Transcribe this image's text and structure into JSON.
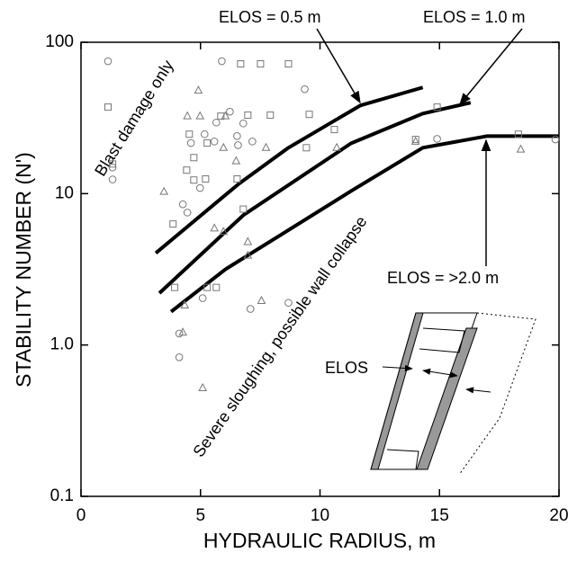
{
  "chart_data": {
    "type": "scatter",
    "x_label": "HYDRAULIC RADIUS, m",
    "y_label": "STABILITY NUMBER (N')",
    "xlim": [
      0,
      20
    ],
    "ylim": [
      0.1,
      100
    ],
    "log_y": true,
    "xticks": [
      0,
      5,
      10,
      15,
      20
    ],
    "yticks": [
      0.1,
      {
        "value": 1,
        "label": "1.0"
      },
      10,
      100
    ],
    "scatter": [
      {
        "marker": "circle",
        "color": "#777777",
        "x": [
          1.13,
          1.32,
          1.32,
          4.26,
          4.45,
          5.89,
          4.98,
          5.17,
          4.6,
          5.58,
          6.53,
          6.57,
          5.66,
          6.23,
          6.79,
          7.17,
          9.36,
          7.09,
          8.68,
          4.11,
          5.09,
          14.9,
          19.85,
          4.11
        ],
        "y": [
          75,
          12.4,
          14.9,
          8.5,
          7.5,
          75,
          10.9,
          24.7,
          21.6,
          22.1,
          24,
          20.9,
          29.5,
          34.8,
          29.1,
          22.1,
          49,
          1.73,
          1.9,
          1.19,
          2.04,
          23,
          22.8,
          0.83
        ]
      },
      {
        "marker": "square",
        "color": "#777777",
        "x": [
          1.13,
          1.32,
          3.85,
          4.42,
          4.72,
          5.21,
          4.72,
          5.28,
          5.85,
          6.98,
          7.51,
          6.68,
          7.92,
          8.68,
          9.55,
          9.43,
          10.6,
          14.0,
          14.9,
          18.3,
          6.53,
          6.79,
          3.92,
          5.28,
          5.66,
          4.53
        ],
        "y": [
          37.3,
          15.7,
          6.3,
          14.3,
          12.3,
          12.5,
          17.3,
          21.6,
          32.5,
          33,
          72,
          72,
          33,
          72,
          33.4,
          20.1,
          26.5,
          22.8,
          37.3,
          24.7,
          12.5,
          7.9,
          2.4,
          2.4,
          2.4,
          24.7
        ]
      },
      {
        "marker": "triangle",
        "color": "#777777",
        "x": [
          3.47,
          4.91,
          4.98,
          4.45,
          6.04,
          5.96,
          6.49,
          7.74,
          5.58,
          5.96,
          6.98,
          6.98,
          7.55,
          4.34,
          5.09,
          10.7,
          14.0,
          18.4,
          4.26
        ],
        "y": [
          10.3,
          48,
          32.5,
          32.5,
          32.5,
          20.1,
          16.4,
          20.1,
          5.9,
          5.6,
          4.8,
          3.9,
          1.96,
          1.83,
          0.52,
          20.1,
          22.1,
          19.6,
          1.21
        ]
      }
    ],
    "lines": [
      {
        "name": "ELOS = 0.5 m",
        "color": "#000000",
        "x": [
          3.13,
          6.6,
          8.68,
          11.7,
          14.3
        ],
        "y": [
          4.05,
          11.6,
          20.1,
          38.3,
          50.3
        ]
      },
      {
        "name": "ELOS = 1.0 m",
        "color": "#000000",
        "x": [
          3.28,
          6.79,
          11.3,
          14.3,
          16.3
        ],
        "y": [
          2.2,
          7.2,
          21.5,
          33.8,
          39.9
        ]
      },
      {
        "name": "ELOS = >2.0 m",
        "color": "#000000",
        "x": [
          3.77,
          6.04,
          8.49,
          11.3,
          14.3,
          17.0,
          20.0
        ],
        "y": [
          1.66,
          3.16,
          5.5,
          10.4,
          20.1,
          24,
          24
        ]
      }
    ],
    "annotations": [
      "Blast damage only",
      "Severe sloughing, possible wall collapse",
      "ELOS"
    ]
  }
}
